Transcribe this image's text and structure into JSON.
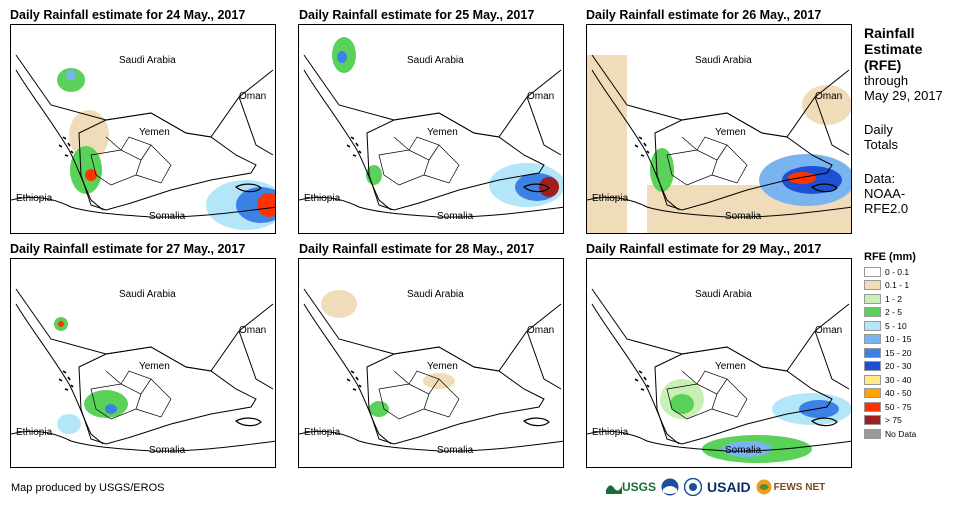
{
  "maps": [
    {
      "title": "Daily Rainfall estimate for 24 May., 2017"
    },
    {
      "title": "Daily Rainfall estimate for 25 May., 2017"
    },
    {
      "title": "Daily Rainfall estimate for 26 May., 2017"
    },
    {
      "title": "Daily Rainfall estimate for 27 May., 2017"
    },
    {
      "title": "Daily Rainfall estimate for 28 May., 2017"
    },
    {
      "title": "Daily Rainfall estimate for 29 May., 2017"
    }
  ],
  "place_labels": {
    "saudi": "Saudi Arabia",
    "oman": "Oman",
    "yemen": "Yemen",
    "ethiopia": "Ethiopia",
    "somalia": "Somalia"
  },
  "sidebar": {
    "title": "Rainfall Estimate (RFE)",
    "through": "through",
    "date": "May 29, 2017",
    "daily": "Daily Totals",
    "data_label": "Data:",
    "source": "NOAA-RFE2.0"
  },
  "legend": {
    "title": "RFE (mm)",
    "items": [
      {
        "label": "0 - 0.1",
        "color": "#ffffff"
      },
      {
        "label": "0.1 - 1",
        "color": "#f0dcb8"
      },
      {
        "label": "1 - 2",
        "color": "#c8f0b4"
      },
      {
        "label": "2 - 5",
        "color": "#5ad25a"
      },
      {
        "label": "5 - 10",
        "color": "#b4e6fa"
      },
      {
        "label": "10 - 15",
        "color": "#7ab4f0"
      },
      {
        "label": "15 - 20",
        "color": "#3c82e6"
      },
      {
        "label": "20 - 30",
        "color": "#1e50d2"
      },
      {
        "label": "30 - 40",
        "color": "#ffeb8c"
      },
      {
        "label": "40 - 50",
        "color": "#ffa500"
      },
      {
        "label": "50 - 75",
        "color": "#ff3200"
      },
      {
        "label": "> 75",
        "color": "#a01e1e"
      },
      {
        "label": "No Data",
        "color": "#999999"
      }
    ]
  },
  "credit": "Map produced by USGS/EROS",
  "logos": {
    "usgs": "USGS",
    "usaid": "USAID",
    "fews": "FEWS NET"
  }
}
